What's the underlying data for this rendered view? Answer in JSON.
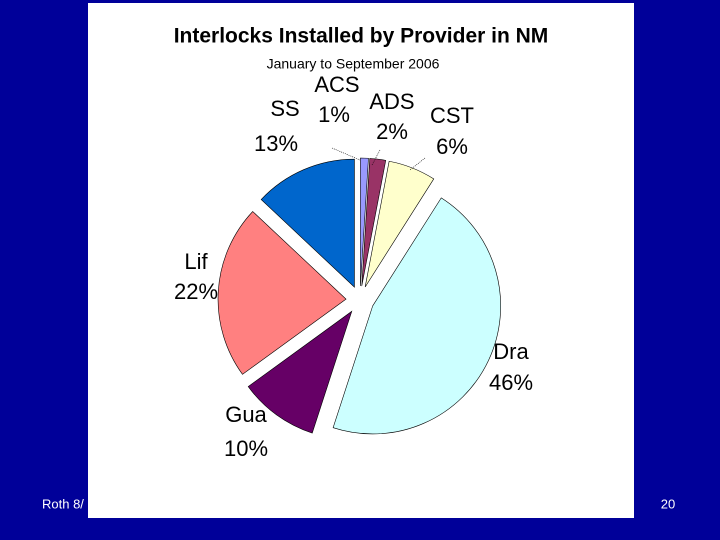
{
  "chart_data": {
    "type": "pie",
    "title": "Interlocks Installed by Provider in NM",
    "subtitle": "January to September 2006",
    "categories": [
      "ACS",
      "ADS",
      "CST",
      "Dra",
      "Gua",
      "Lif",
      "SS"
    ],
    "values": [
      1,
      2,
      6,
      46,
      10,
      22,
      13
    ],
    "value_labels": [
      "1%",
      "2%",
      "6%",
      "46%",
      "10%",
      "22%",
      "13%"
    ],
    "colors": [
      "#9999ff",
      "#993366",
      "#ffffcc",
      "#ccffff",
      "#660066",
      "#ff8080",
      "#0066cc"
    ]
  },
  "footer": {
    "left": "Roth 8/",
    "page_number": "20"
  }
}
